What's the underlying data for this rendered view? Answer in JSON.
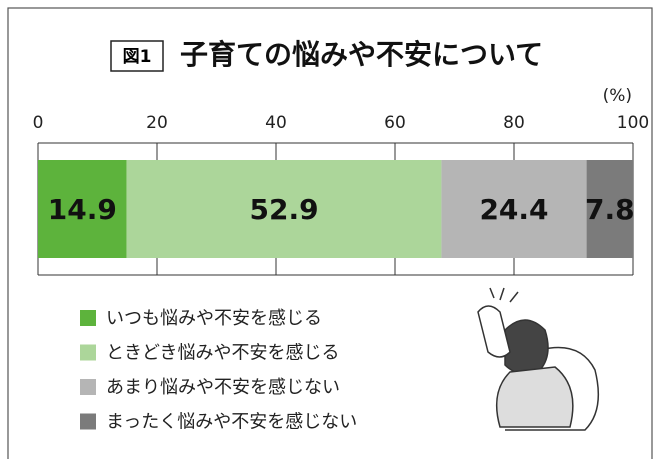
{
  "chart_data": {
    "type": "bar",
    "orientation": "horizontal",
    "stacked": true,
    "figure_label": "図1",
    "title": "子育ての悩みや不安について",
    "unit_label": "(%)",
    "categories": [
      null
    ],
    "series": [
      {
        "name": "いつも悩みや不安を感じる",
        "color": "#5db33c",
        "values": [
          14.9
        ]
      },
      {
        "name": "ときどき悩みや不安を感じる",
        "color": "#acd69a",
        "values": [
          52.9
        ]
      },
      {
        "name": "あまり悩みや不安を感じない",
        "color": "#b5b5b5",
        "values": [
          24.4
        ]
      },
      {
        "name": "まったく悩みや不安を感じない",
        "color": "#7b7b7b",
        "values": [
          7.8
        ]
      }
    ],
    "xlim": [
      0,
      100
    ],
    "xticks": [
      0,
      20,
      40,
      60,
      80,
      100
    ]
  }
}
